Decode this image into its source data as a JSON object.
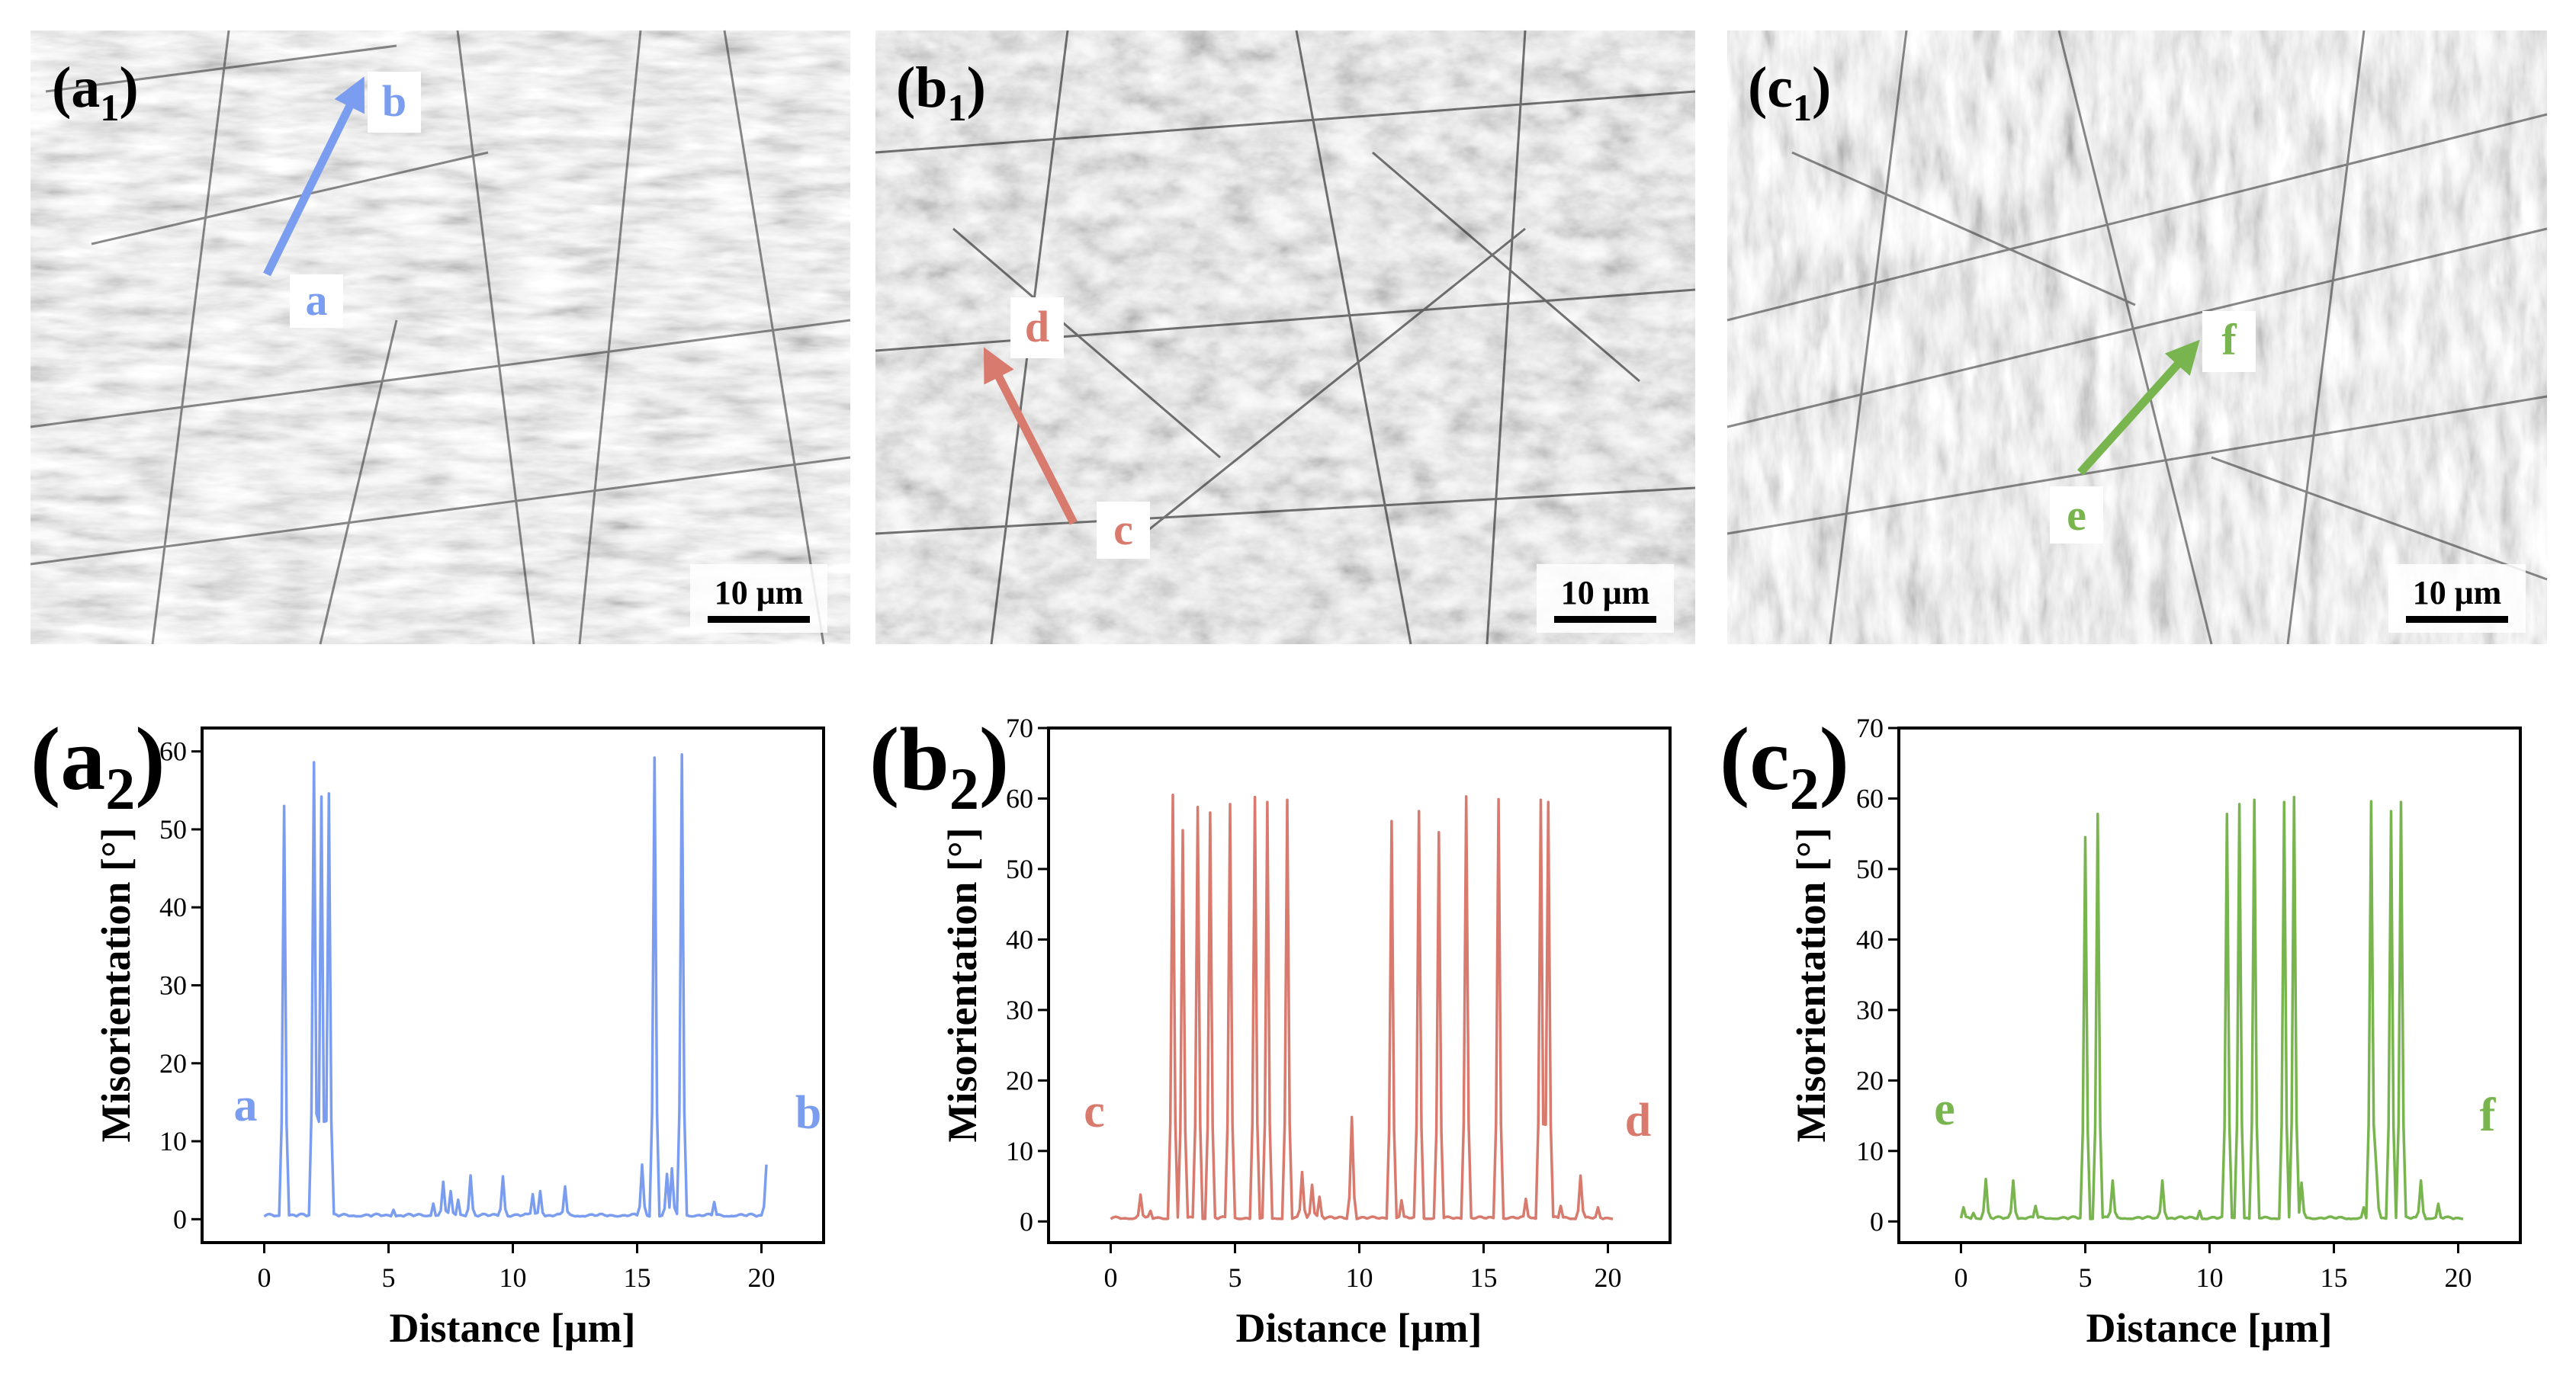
{
  "figure_name": "EBSD misorientation line profiles",
  "micrographs": [
    {
      "panel_label": "(a",
      "panel_sub": "1",
      "panel_close": ")",
      "start_label": "a",
      "end_label": "b",
      "color": "#7b9df0",
      "scale_bar": "10 μm",
      "tone": "light"
    },
    {
      "panel_label": "(b",
      "panel_sub": "1",
      "panel_close": ")",
      "start_label": "c",
      "end_label": "d",
      "color": "#d87a6d",
      "scale_bar": "10 μm",
      "tone": "mid"
    },
    {
      "panel_label": "(c",
      "panel_sub": "1",
      "panel_close": ")",
      "start_label": "e",
      "end_label": "f",
      "color": "#78b54e",
      "scale_bar": "10 μm",
      "tone": "light"
    }
  ],
  "chart_data": [
    {
      "type": "line",
      "panel_label": "(a",
      "panel_sub": "2",
      "panel_close": ")",
      "xlabel": "Distance [μm]",
      "ylabel": "Misorientation [°]",
      "xlim": [
        -2.5,
        22.5
      ],
      "ylim": [
        -3,
        63
      ],
      "xticks": [
        0,
        5,
        10,
        15,
        20
      ],
      "yticks": [
        0,
        10,
        20,
        30,
        40,
        50,
        60
      ],
      "start_label": "a",
      "end_label": "b",
      "series": [
        {
          "name": "a-b",
          "color": "#7b9df0",
          "peaks": [
            [
              0.8,
              53
            ],
            [
              2.0,
              58.6
            ],
            [
              2.3,
              54.2
            ],
            [
              2.6,
              54.6
            ],
            [
              5.2,
              1.2
            ],
            [
              6.8,
              2
            ],
            [
              7.2,
              4.8
            ],
            [
              7.5,
              3.6
            ],
            [
              7.8,
              2.5
            ],
            [
              8.3,
              5.6
            ],
            [
              9.6,
              5.5
            ],
            [
              10.8,
              3.2
            ],
            [
              11.1,
              3.6
            ],
            [
              12.1,
              4.2
            ],
            [
              15.2,
              7
            ],
            [
              15.7,
              59.2
            ],
            [
              16.2,
              5.8
            ],
            [
              16.4,
              6.5
            ],
            [
              16.8,
              59.6
            ],
            [
              18.1,
              2.2
            ],
            [
              20.2,
              7
            ]
          ]
        }
      ]
    },
    {
      "type": "line",
      "panel_label": "(b",
      "panel_sub": "2",
      "panel_close": ")",
      "xlabel": "Distance [μm]",
      "ylabel": "Misorientation [°]",
      "xlim": [
        -2.5,
        22.5
      ],
      "ylim": [
        -3,
        70
      ],
      "xticks": [
        0,
        5,
        10,
        15,
        20
      ],
      "yticks": [
        0,
        10,
        20,
        30,
        40,
        50,
        60,
        70
      ],
      "start_label": "c",
      "end_label": "d",
      "series": [
        {
          "name": "c-d",
          "color": "#d87a6d",
          "peaks": [
            [
              1.2,
              3.8
            ],
            [
              1.6,
              1.5
            ],
            [
              2.5,
              60.5
            ],
            [
              2.9,
              55.5
            ],
            [
              3.5,
              58.8
            ],
            [
              4.0,
              58
            ],
            [
              4.8,
              59.2
            ],
            [
              5.8,
              60.2
            ],
            [
              6.3,
              59.5
            ],
            [
              7.1,
              59.8
            ],
            [
              7.7,
              7
            ],
            [
              8.1,
              5.2
            ],
            [
              8.4,
              3.5
            ],
            [
              9.7,
              14.8
            ],
            [
              11.3,
              56.8
            ],
            [
              11.7,
              3
            ],
            [
              12.4,
              58.2
            ],
            [
              13.2,
              55.2
            ],
            [
              14.3,
              60.3
            ],
            [
              15.6,
              59.9
            ],
            [
              16.7,
              3.2
            ],
            [
              17.3,
              59.8
            ],
            [
              17.6,
              59.5
            ],
            [
              18.1,
              2.2
            ],
            [
              18.9,
              6.5
            ],
            [
              19.6,
              2
            ]
          ]
        }
      ]
    },
    {
      "type": "line",
      "panel_label": "(c",
      "panel_sub": "2",
      "panel_close": ")",
      "xlabel": "Distance [μm]",
      "ylabel": "Misorientation [°]",
      "xlim": [
        -2.5,
        22.5
      ],
      "ylim": [
        -3,
        70
      ],
      "xticks": [
        0,
        5,
        10,
        15,
        20
      ],
      "yticks": [
        0,
        10,
        20,
        30,
        40,
        50,
        60,
        70
      ],
      "start_label": "e",
      "end_label": "f",
      "series": [
        {
          "name": "e-f",
          "color": "#78b54e",
          "peaks": [
            [
              0.1,
              2
            ],
            [
              0.5,
              1.2
            ],
            [
              1.0,
              6
            ],
            [
              2.1,
              5.8
            ],
            [
              3.0,
              2.2
            ],
            [
              5.0,
              54.5
            ],
            [
              5.5,
              57.8
            ],
            [
              6.1,
              5.8
            ],
            [
              8.1,
              5.8
            ],
            [
              9.6,
              1.5
            ],
            [
              10.7,
              57.8
            ],
            [
              11.2,
              59.2
            ],
            [
              11.8,
              59.8
            ],
            [
              13.0,
              59.5
            ],
            [
              13.4,
              60.2
            ],
            [
              13.7,
              5.5
            ],
            [
              16.2,
              2
            ],
            [
              16.5,
              59.6
            ],
            [
              16.7,
              8.2
            ],
            [
              17.3,
              58.2
            ],
            [
              17.7,
              59.5
            ],
            [
              18.5,
              5.8
            ],
            [
              19.2,
              2.5
            ]
          ]
        }
      ]
    }
  ]
}
